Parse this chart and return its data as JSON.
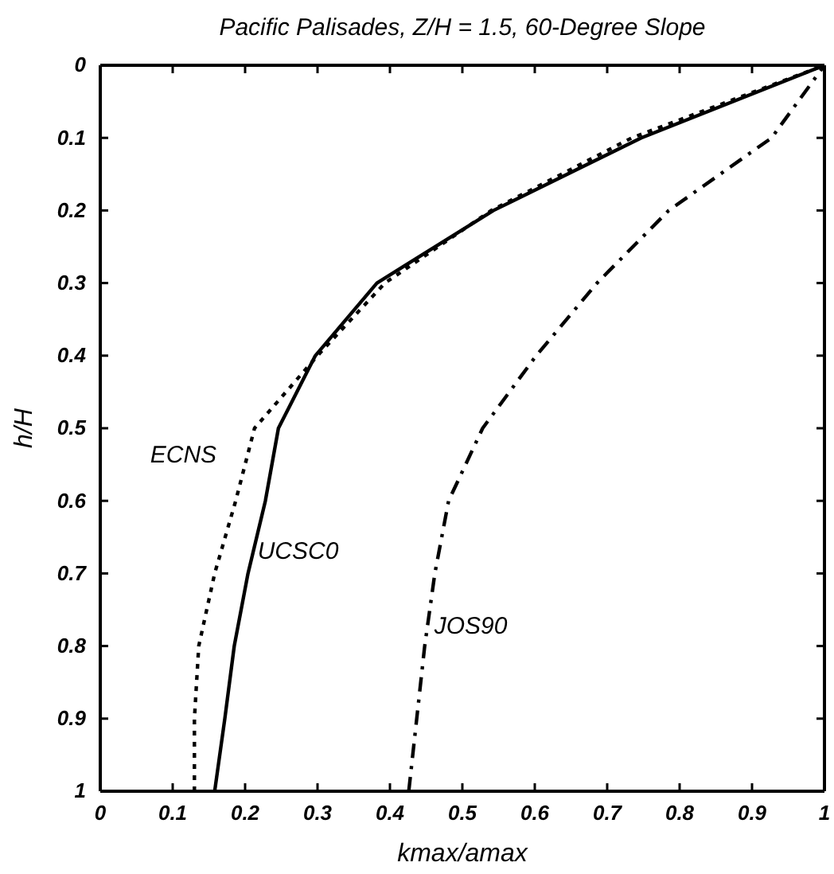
{
  "chart_data": {
    "type": "line",
    "title": "Pacific Palisades, Z/H = 1.5, 60-Degree Slope",
    "xlabel": "kmax/amax",
    "ylabel": "h/H",
    "xlim": [
      0,
      1
    ],
    "ylim": [
      1,
      0
    ],
    "xticks": [
      0,
      0.1,
      0.2,
      0.3,
      0.4,
      0.5,
      0.6,
      0.7,
      0.8,
      0.9,
      1
    ],
    "yticks": [
      0,
      0.1,
      0.2,
      0.3,
      0.4,
      0.5,
      0.6,
      0.7,
      0.8,
      0.9,
      1
    ],
    "grid": false,
    "marker": "none",
    "series": [
      {
        "name": "ECNS",
        "color": "#000000",
        "line_style": "dotted",
        "x": [
          0.13,
          0.13,
          0.136,
          0.158,
          0.187,
          0.213,
          0.3,
          0.393,
          0.54,
          0.734,
          1
        ],
        "values": [
          1,
          0.9,
          0.8,
          0.7,
          0.6,
          0.5,
          0.4,
          0.3,
          0.2,
          0.1,
          0
        ]
      },
      {
        "name": "UCSC0",
        "color": "#000000",
        "line_style": "solid",
        "x": [
          0.158,
          0.172,
          0.185,
          0.204,
          0.228,
          0.246,
          0.297,
          0.382,
          0.543,
          0.747,
          1
        ],
        "values": [
          1,
          0.9,
          0.8,
          0.7,
          0.6,
          0.5,
          0.4,
          0.3,
          0.2,
          0.1,
          0
        ]
      },
      {
        "name": "JOS90",
        "color": "#000000",
        "line_style": "dashdot",
        "x": [
          0.426,
          0.437,
          0.448,
          0.462,
          0.481,
          0.528,
          0.602,
          0.686,
          0.785,
          0.927,
          1
        ],
        "values": [
          1,
          0.9,
          0.8,
          0.7,
          0.6,
          0.5,
          0.4,
          0.3,
          0.2,
          0.1,
          0
        ]
      }
    ]
  }
}
